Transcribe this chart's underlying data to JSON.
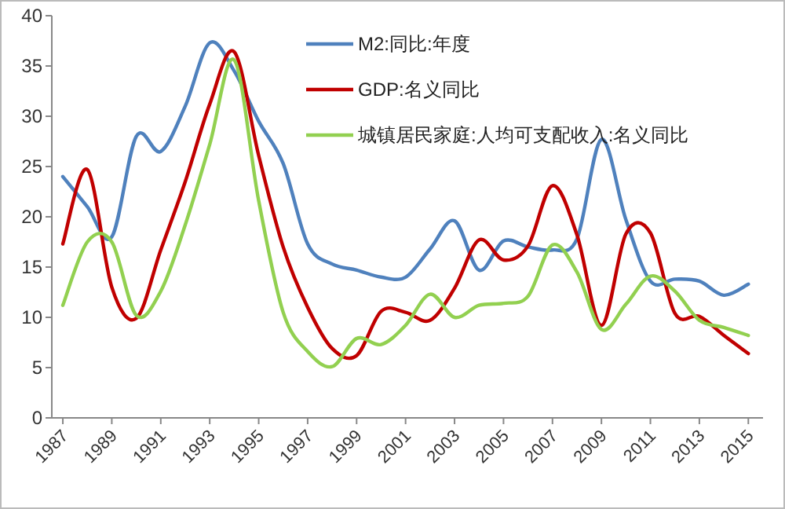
{
  "chart_data": {
    "type": "line",
    "x": [
      1987,
      1988,
      1989,
      1990,
      1991,
      1992,
      1993,
      1994,
      1995,
      1996,
      1997,
      1998,
      1999,
      2000,
      2001,
      2002,
      2003,
      2004,
      2005,
      2006,
      2007,
      2008,
      2009,
      2010,
      2011,
      2012,
      2013,
      2014,
      2015
    ],
    "series": [
      {
        "name": "M2:同比:年度",
        "color": "#4f81bd",
        "values": [
          24,
          21,
          18,
          28,
          26.5,
          31,
          37.3,
          34.5,
          29.5,
          25.3,
          17.3,
          15.3,
          14.7,
          14,
          14,
          16.8,
          19.6,
          14.7,
          17.6,
          17,
          16.7,
          17.8,
          27.7,
          19.7,
          13.6,
          13.8,
          13.6,
          12.2,
          13.3
        ]
      },
      {
        "name": "GDP:名义同比",
        "color": "#c00000",
        "values": [
          17.3,
          24.7,
          13,
          9.9,
          16.7,
          23.5,
          31.2,
          36.4,
          26.1,
          17,
          11,
          6.9,
          6.2,
          10.6,
          10.5,
          9.7,
          12.9,
          17.7,
          15.7,
          17.1,
          23.1,
          18.2,
          9.2,
          18.3,
          18.4,
          10.4,
          10.1,
          8.2,
          6.4
        ]
      },
      {
        "name": "城镇居民家庭:人均可支配收入:名义同比",
        "color": "#92d050",
        "values": [
          11.2,
          17.5,
          17.5,
          10.2,
          12.6,
          19.2,
          27.2,
          35.6,
          21.6,
          10.5,
          6.6,
          5.1,
          7.9,
          7.3,
          9.2,
          12.3,
          10,
          11.2,
          11.4,
          12.1,
          17.2,
          14.5,
          8.8,
          11.3,
          14.1,
          12.6,
          9.7,
          9,
          8.2
        ]
      }
    ],
    "xlim": [
      1986.55,
      2015.6
    ],
    "xticks": [
      1987,
      1989,
      1991,
      1993,
      1995,
      1997,
      1999,
      2001,
      2003,
      2005,
      2007,
      2009,
      2011,
      2013,
      2015
    ],
    "ylim": [
      0,
      40
    ],
    "yticks": [
      0,
      5,
      10,
      15,
      20,
      25,
      30,
      35,
      40
    ],
    "grid": false,
    "legend": "top right",
    "marker": "none",
    "line_style": "solid"
  }
}
